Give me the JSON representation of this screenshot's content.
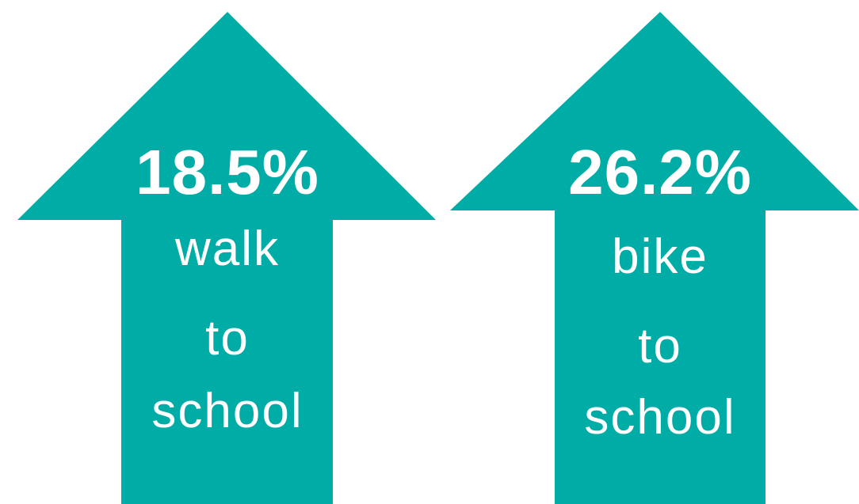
{
  "arrows": [
    {
      "value": "18.5%",
      "lines": [
        "walk",
        "to",
        "school"
      ]
    },
    {
      "value": "26.2%",
      "lines": [
        "bike",
        "to",
        "school"
      ]
    }
  ]
}
